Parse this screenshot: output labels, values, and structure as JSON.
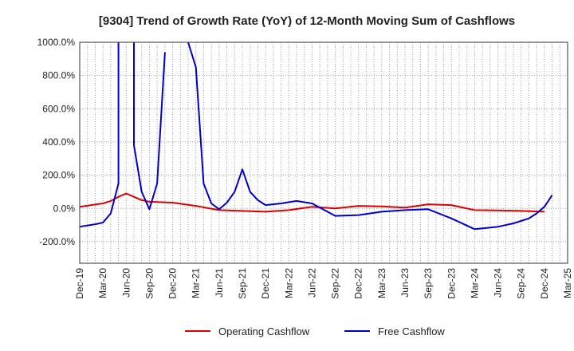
{
  "chart_data": {
    "type": "line",
    "title": "[9304]  Trend of Growth Rate (YoY) of 12-Month Moving Sum of Cashflows",
    "xlabel": "",
    "ylabel": "",
    "x_tick_labels": [
      "Dec-19",
      "Mar-20",
      "Jun-20",
      "Sep-20",
      "Dec-20",
      "Mar-21",
      "Jun-21",
      "Sep-21",
      "Dec-21",
      "Mar-22",
      "Jun-22",
      "Sep-22",
      "Dec-22",
      "Mar-23",
      "Jun-23",
      "Sep-23",
      "Dec-23",
      "Mar-24",
      "Jun-24",
      "Sep-24",
      "Dec-24",
      "Mar-25"
    ],
    "y_tick_labels": [
      "1000.0%",
      "800.0%",
      "600.0%",
      "400.0%",
      "200.0%",
      "0.0%",
      "-200.0%"
    ],
    "y_ticks": [
      1000,
      800,
      600,
      400,
      200,
      0,
      -200
    ],
    "ylim": [
      -330,
      1000
    ],
    "grid": true,
    "legend_position": "bottom-center",
    "series": [
      {
        "name": "Operating Cashflow",
        "color": "#dd0000",
        "points": [
          [
            "Dec-19",
            10
          ],
          [
            "Mar-20",
            30
          ],
          [
            "Apr-20",
            45
          ],
          [
            "May-20",
            70
          ],
          [
            "Jun-20",
            90
          ],
          [
            "Jul-20",
            70
          ],
          [
            "Aug-20",
            50
          ],
          [
            "Sep-20",
            40
          ],
          [
            "Dec-20",
            35
          ],
          [
            "Mar-21",
            15
          ],
          [
            "Jun-21",
            -10
          ],
          [
            "Sep-21",
            -15
          ],
          [
            "Dec-21",
            -20
          ],
          [
            "Mar-22",
            -10
          ],
          [
            "Jun-22",
            10
          ],
          [
            "Sep-22",
            0
          ],
          [
            "Dec-22",
            15
          ],
          [
            "Mar-23",
            12
          ],
          [
            "Jun-23",
            5
          ],
          [
            "Sep-23",
            25
          ],
          [
            "Dec-23",
            20
          ],
          [
            "Mar-24",
            -10
          ],
          [
            "Jun-24",
            -12
          ],
          [
            "Sep-24",
            -15
          ],
          [
            "Dec-24",
            -20
          ]
        ]
      },
      {
        "name": "Free Cashflow",
        "color": "#0000cc",
        "points": [
          [
            "Dec-19",
            -110
          ],
          [
            "Feb-20",
            -95
          ],
          [
            "Mar-20",
            -85
          ],
          [
            "Apr-20",
            -30
          ],
          [
            "May-20",
            150
          ],
          [
            "May-20",
            1000,
            "break"
          ],
          [
            "Jul-20",
            1000,
            "break"
          ],
          [
            "Jul-20",
            380
          ],
          [
            "Aug-20",
            100
          ],
          [
            "Sep-20",
            -5
          ],
          [
            "Oct-20",
            150
          ],
          [
            "Nov-20",
            940,
            "end"
          ],
          [
            "Feb-21",
            1000,
            "break"
          ],
          [
            "Mar-21",
            850
          ],
          [
            "Apr-21",
            150
          ],
          [
            "May-21",
            30
          ],
          [
            "Jun-21",
            -5
          ],
          [
            "Jul-21",
            35
          ],
          [
            "Aug-21",
            100
          ],
          [
            "Sep-21",
            235
          ],
          [
            "Oct-21",
            100
          ],
          [
            "Nov-21",
            50
          ],
          [
            "Dec-21",
            20
          ],
          [
            "Feb-22",
            30
          ],
          [
            "Apr-22",
            45
          ],
          [
            "Jun-22",
            30
          ],
          [
            "Jul-22",
            5
          ],
          [
            "Sep-22",
            -45
          ],
          [
            "Dec-22",
            -40
          ],
          [
            "Mar-23",
            -20
          ],
          [
            "Jun-23",
            -10
          ],
          [
            "Sep-23",
            -5
          ],
          [
            "Dec-23",
            -60
          ],
          [
            "Mar-24",
            -125
          ],
          [
            "Jun-24",
            -110
          ],
          [
            "Aug-24",
            -90
          ],
          [
            "Oct-24",
            -60
          ],
          [
            "Nov-24",
            -30
          ],
          [
            "Dec-24",
            10
          ],
          [
            "Jan-25",
            80
          ]
        ]
      }
    ]
  }
}
